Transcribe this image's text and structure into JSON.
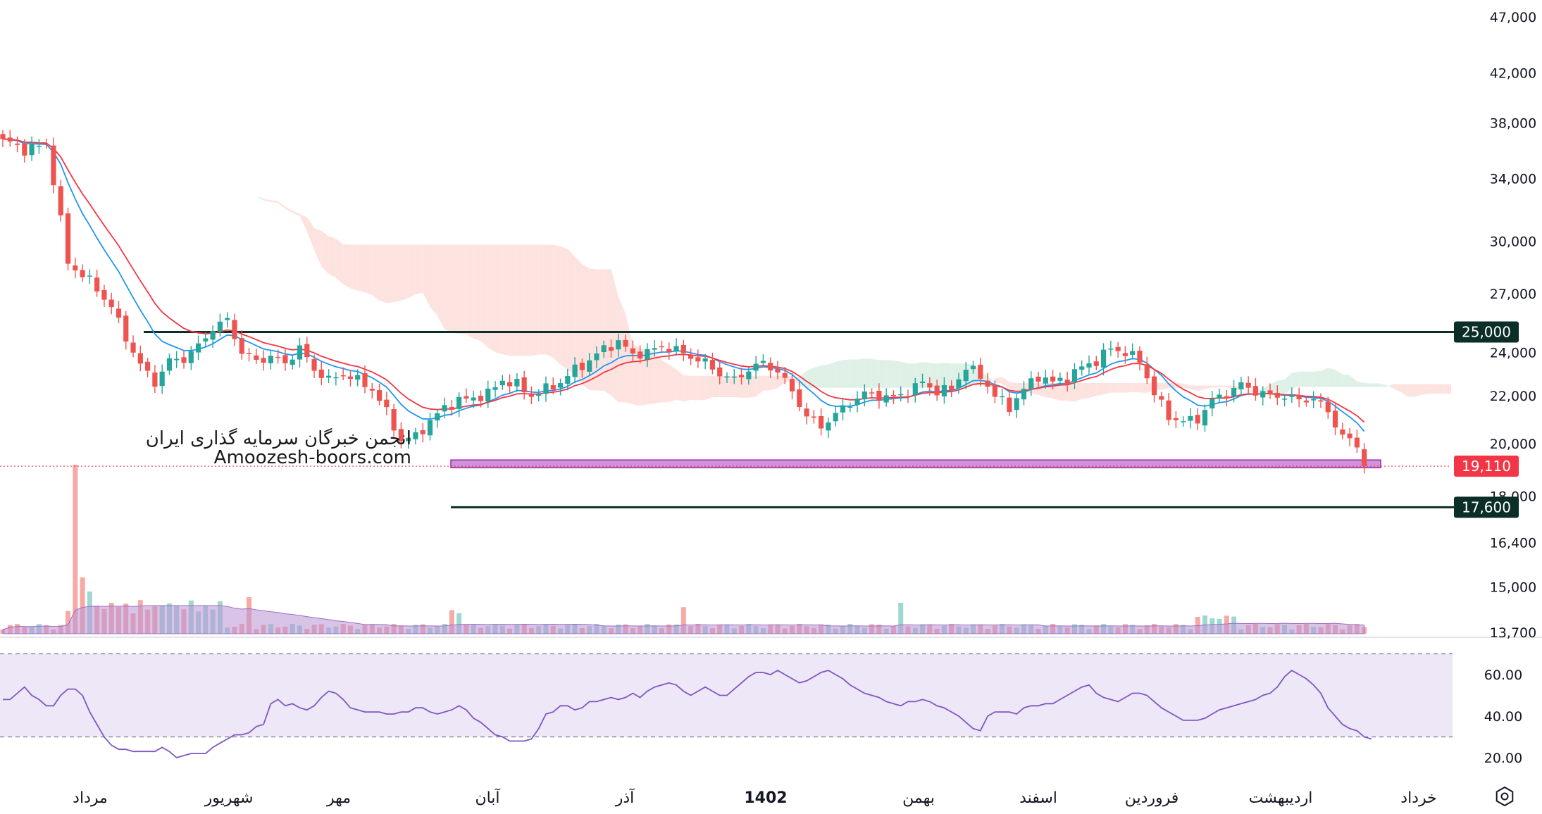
{
  "watermark": {
    "line1": "انجمن خبرگان سرمایه گذاری ایران",
    "line2": "Amoozesh-boors.com"
  },
  "colors": {
    "up": "#26a69a",
    "down": "#ef5350",
    "ma_fast": "#2196f3",
    "ma_slow": "#f23645",
    "cloud_bear": "#fde3df",
    "cloud_bull": "#dff1e6",
    "rsi": "#7e57c2",
    "rsi_band": "#ede7f8",
    "volume_ma": "#b993d6",
    "level": "#0b2e26",
    "price_tag": "#f23645",
    "zone": "#ce93d8"
  },
  "chart_data": [
    {
      "type": "candlestick",
      "price_axis": {
        "scale": "log",
        "range": [
          13700,
          47000
        ],
        "tick_labels": [
          "47,000",
          "42,000",
          "38,000",
          "34,000",
          "30,000",
          "27,000",
          "24,000",
          "22,000",
          "20,000",
          "18,000",
          "16,400",
          "15,000",
          "13,700"
        ]
      },
      "time_axis": {
        "labels": [
          "مرداد",
          "شهریور",
          "مهر",
          "آبان",
          "آذر",
          "1402",
          "بهمن",
          "اسفند",
          "فروردین",
          "اردیبهشت",
          "خرداد"
        ],
        "bold": [
          "1402"
        ]
      },
      "levels": [
        {
          "value": 25000,
          "label": "25,000"
        },
        {
          "value": 17600,
          "label": "17,600"
        }
      ],
      "support_zone": {
        "from": 19050,
        "to": 19350
      },
      "last_price": {
        "value": 19110,
        "label": "19,110"
      },
      "anchors": [
        [
          0,
          36800
        ],
        [
          3,
          36000
        ],
        [
          6,
          36400
        ],
        [
          9,
          28700
        ],
        [
          12,
          27700
        ],
        [
          15,
          26300
        ],
        [
          17,
          24700
        ],
        [
          19,
          23400
        ],
        [
          21,
          22600
        ],
        [
          23,
          23600
        ],
        [
          25,
          23700
        ],
        [
          27,
          24300
        ],
        [
          29,
          25200
        ],
        [
          31,
          25600
        ],
        [
          33,
          24000
        ],
        [
          35,
          23600
        ],
        [
          37,
          23800
        ],
        [
          39,
          23500
        ],
        [
          41,
          24200
        ],
        [
          43,
          23200
        ],
        [
          45,
          22700
        ],
        [
          47,
          23000
        ],
        [
          49,
          22700
        ],
        [
          51,
          22300
        ],
        [
          53,
          21300
        ],
        [
          55,
          20100
        ],
        [
          57,
          20300
        ],
        [
          59,
          20900
        ],
        [
          61,
          21500
        ],
        [
          63,
          21800
        ],
        [
          65,
          21900
        ],
        [
          67,
          22100
        ],
        [
          69,
          22700
        ],
        [
          71,
          22500
        ],
        [
          73,
          22000
        ],
        [
          75,
          22300
        ],
        [
          77,
          22600
        ],
        [
          79,
          23200
        ],
        [
          81,
          23600
        ],
        [
          83,
          24200
        ],
        [
          85,
          24500
        ],
        [
          87,
          23900
        ],
        [
          89,
          24000
        ],
        [
          91,
          24300
        ],
        [
          93,
          24100
        ],
        [
          95,
          23800
        ],
        [
          97,
          23500
        ],
        [
          99,
          23000
        ],
        [
          101,
          22700
        ],
        [
          103,
          23200
        ],
        [
          105,
          23500
        ],
        [
          107,
          23100
        ],
        [
          109,
          22200
        ],
        [
          111,
          21100
        ],
        [
          113,
          20700
        ],
        [
          115,
          21200
        ],
        [
          117,
          21700
        ],
        [
          119,
          22100
        ],
        [
          121,
          22000
        ],
        [
          123,
          21900
        ],
        [
          125,
          22200
        ],
        [
          127,
          22600
        ],
        [
          129,
          22200
        ],
        [
          131,
          22300
        ],
        [
          133,
          23300
        ],
        [
          135,
          22900
        ],
        [
          137,
          22000
        ],
        [
          139,
          21500
        ],
        [
          141,
          22300
        ],
        [
          143,
          22900
        ],
        [
          145,
          22600
        ],
        [
          147,
          22800
        ],
        [
          149,
          23300
        ],
        [
          151,
          23600
        ],
        [
          153,
          24200
        ],
        [
          155,
          24000
        ],
        [
          157,
          23600
        ],
        [
          159,
          22100
        ],
        [
          161,
          21100
        ],
        [
          163,
          20900
        ],
        [
          165,
          21000
        ],
        [
          167,
          21800
        ],
        [
          169,
          22100
        ],
        [
          171,
          22500
        ],
        [
          173,
          22200
        ],
        [
          175,
          22000
        ],
        [
          177,
          22000
        ],
        [
          179,
          21800
        ],
        [
          181,
          21900
        ],
        [
          183,
          21300
        ],
        [
          185,
          20300
        ],
        [
          187,
          19900
        ],
        [
          188,
          19110
        ]
      ],
      "rsi": {
        "values": [
          48,
          48,
          51,
          54,
          50,
          48,
          45,
          45,
          50,
          53,
          53,
          50,
          42,
          36,
          30,
          26,
          24,
          24,
          23,
          23,
          23,
          23,
          25,
          23,
          20,
          21,
          22,
          22,
          22,
          25,
          27,
          29,
          31,
          31,
          32,
          35,
          36,
          46,
          48,
          45,
          46,
          44,
          43,
          45,
          49,
          52,
          51,
          48,
          44,
          43,
          42,
          42,
          42,
          41,
          41,
          42,
          42,
          44,
          44,
          42,
          41,
          42,
          43,
          45,
          43,
          39,
          37,
          34,
          31,
          30,
          28,
          28,
          28,
          29,
          34,
          41,
          42,
          45,
          45,
          43,
          44,
          47,
          47,
          48,
          49,
          48,
          49,
          51,
          49,
          52,
          54,
          55,
          56,
          55,
          52,
          50,
          52,
          54,
          52,
          50,
          50,
          53,
          56,
          59,
          61,
          61,
          60,
          62,
          60,
          58,
          56,
          57,
          59,
          61,
          62,
          60,
          58,
          55,
          53,
          51,
          50,
          49,
          47,
          46,
          45,
          47,
          47,
          48,
          47,
          45,
          44,
          42,
          40,
          37,
          34,
          33,
          40,
          42,
          42,
          42,
          41,
          44,
          45,
          45,
          46,
          46,
          48,
          50,
          52,
          54,
          55,
          51,
          49,
          48,
          47,
          49,
          51,
          51,
          50,
          47,
          44,
          42,
          40,
          38,
          38,
          38,
          39,
          41,
          43,
          44,
          45,
          46,
          47,
          48,
          50,
          51,
          54,
          59,
          62,
          60,
          58,
          55,
          51,
          44,
          40,
          36,
          34,
          33,
          30,
          29
        ],
        "ticks": [
          "60.00",
          "40.00",
          "20.00"
        ],
        "overbought": 70,
        "oversold": 30
      }
    }
  ]
}
